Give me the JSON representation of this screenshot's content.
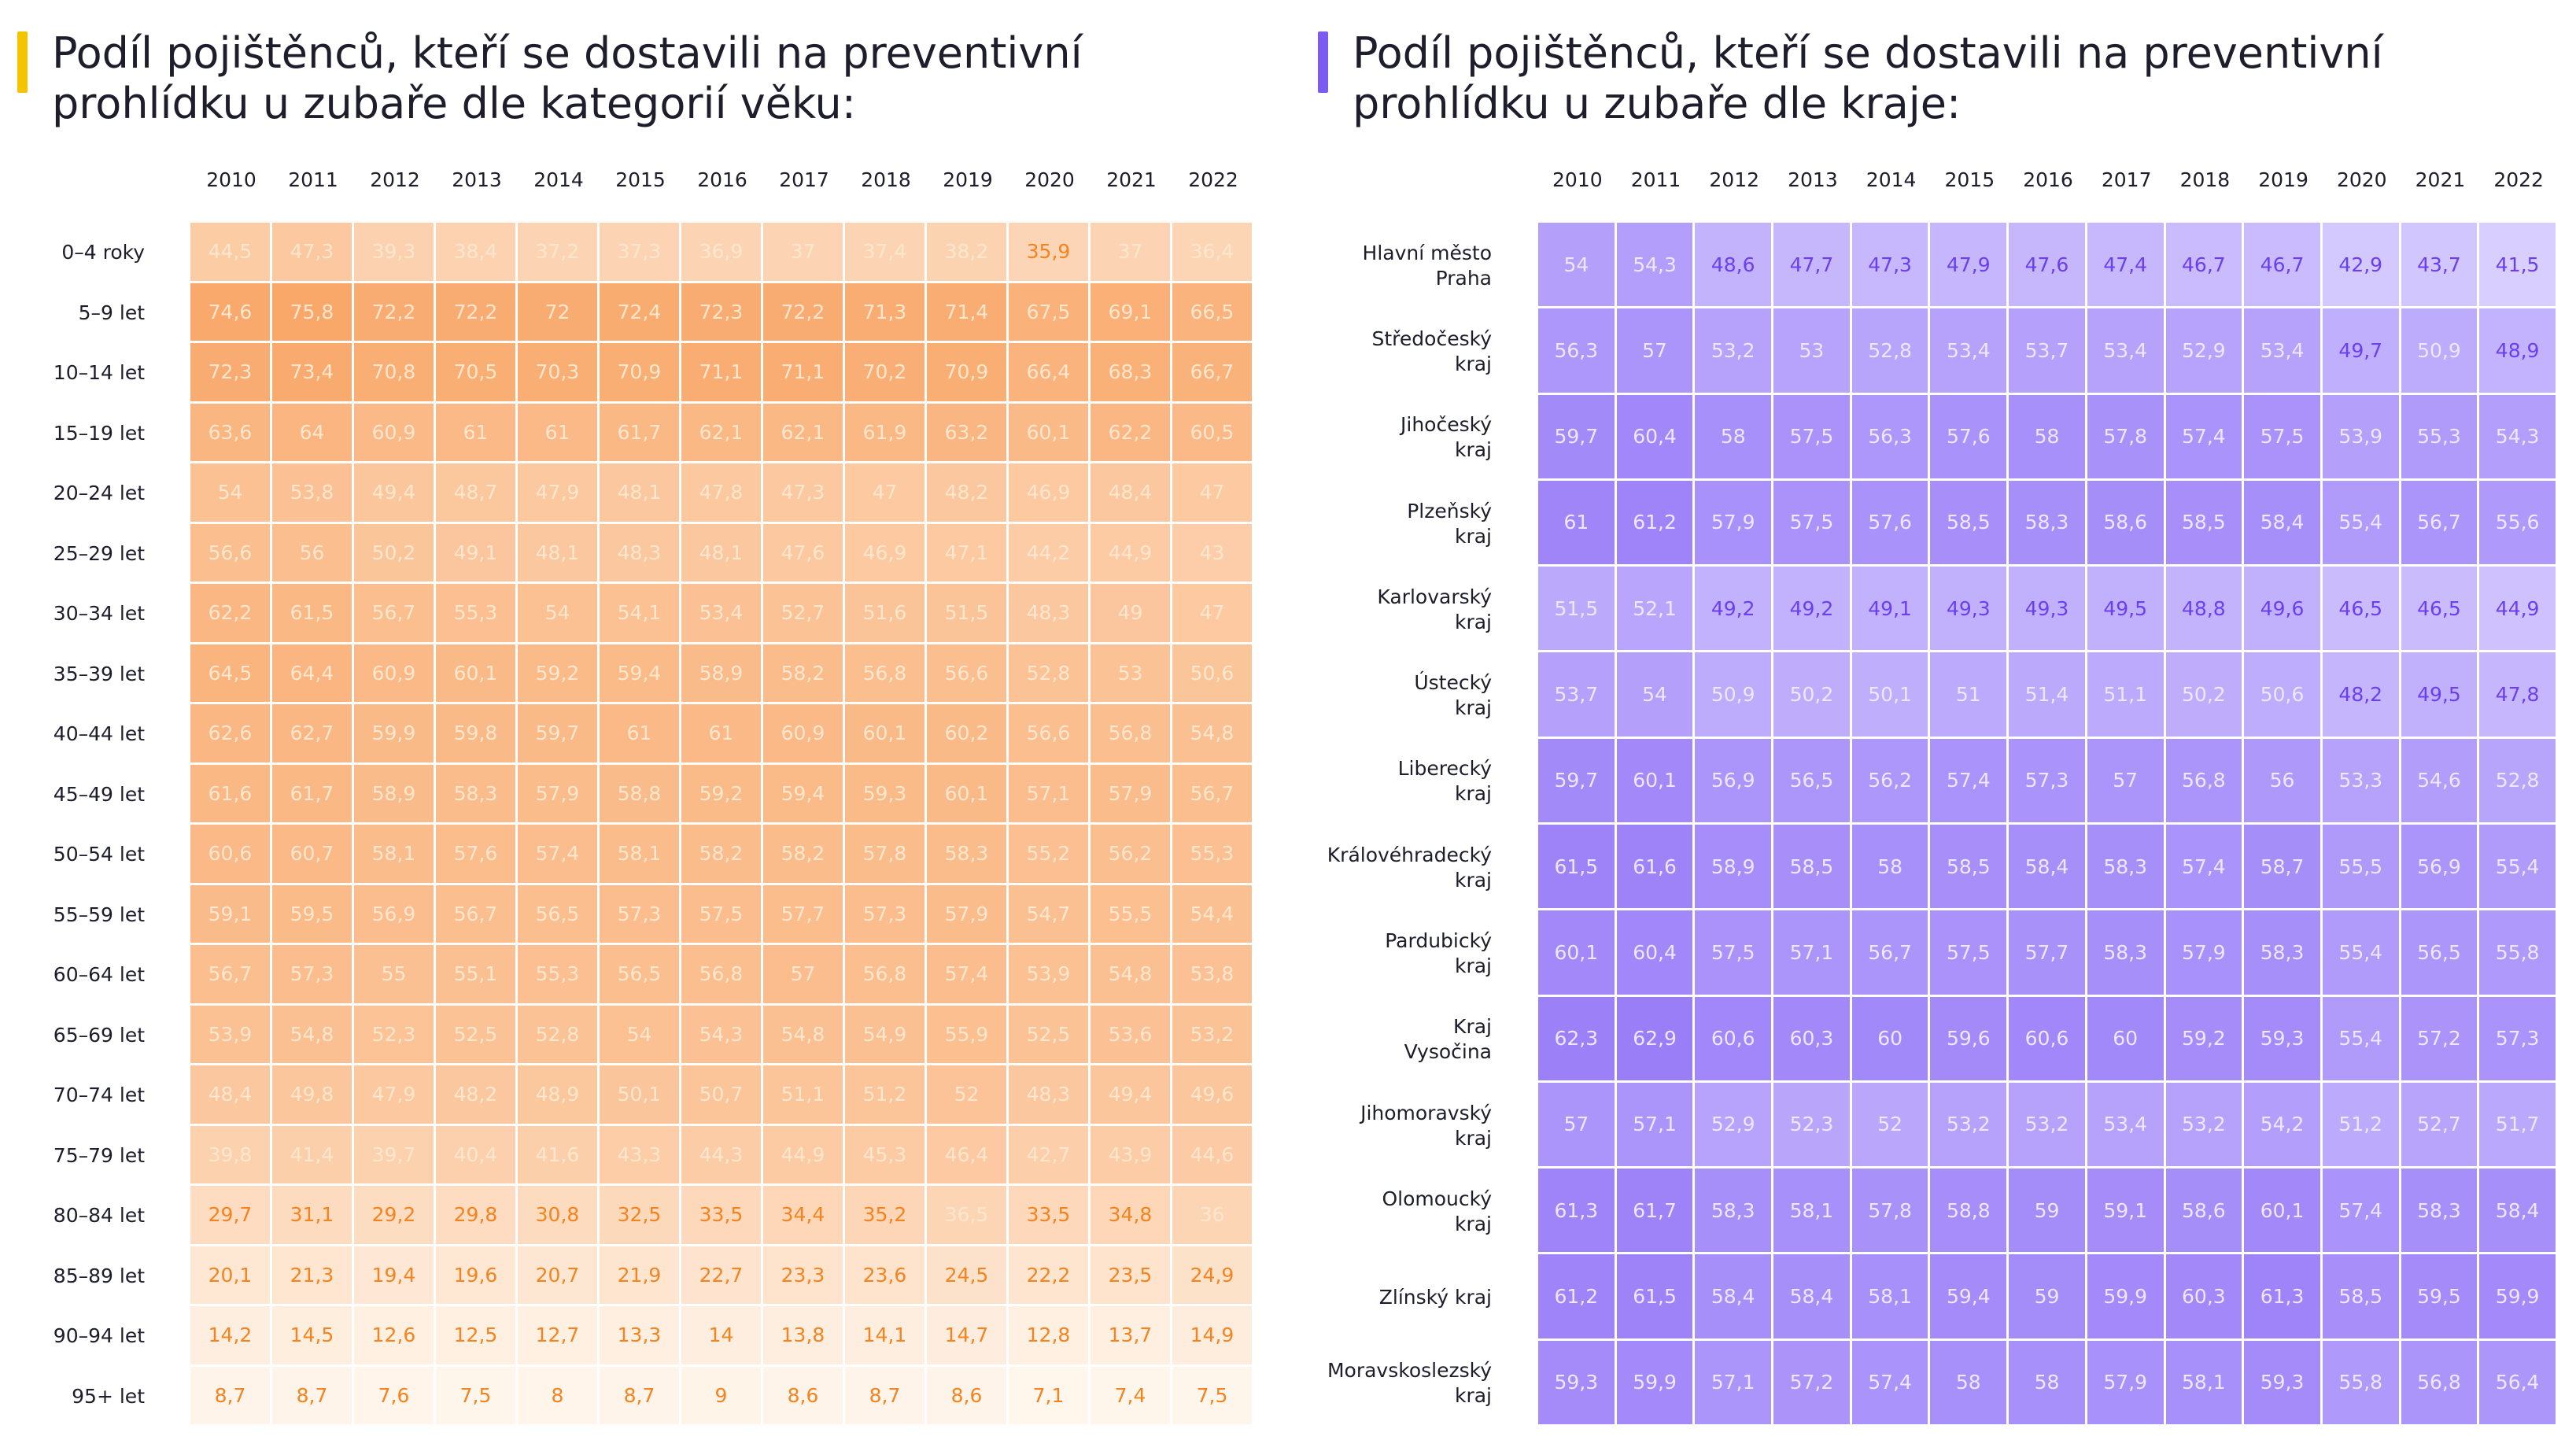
{
  "colors": {
    "left_accent": "#f5c400",
    "right_accent": "#7b5cf0",
    "left_text_high": "#ffe7cf",
    "left_text_low": "#f4841f",
    "right_text_high": "#ede8ff",
    "right_text_low": "#6b3ff0"
  },
  "chart_data": [
    {
      "type": "heatmap",
      "title": "Podíl pojištěnců, kteří se dostavili na preventivní\nprohlídku u zubaře dle kategorií věku:",
      "x": [
        "2010",
        "2011",
        "2012",
        "2013",
        "2014",
        "2015",
        "2016",
        "2017",
        "2018",
        "2019",
        "2020",
        "2021",
        "2022"
      ],
      "y": [
        "0–4 roky",
        "5–9 let",
        "10–14 let",
        "15–19 let",
        "20–24 let",
        "25–29 let",
        "30–34 let",
        "35–39 let",
        "40–44 let",
        "45–49 let",
        "50–54 let",
        "55–59 let",
        "60–64 let",
        "65–69 let",
        "70–74 let",
        "75–79 let",
        "80–84 let",
        "85–89 let",
        "90–94 let",
        "95+ let"
      ],
      "values": [
        [
          44.5,
          47.3,
          39.3,
          38.4,
          37.2,
          37.3,
          36.9,
          37,
          37.4,
          38.2,
          35.9,
          37,
          36.4
        ],
        [
          74.6,
          75.8,
          72.2,
          72.2,
          72,
          72.4,
          72.3,
          72.2,
          71.3,
          71.4,
          67.5,
          69.1,
          66.5
        ],
        [
          72.3,
          73.4,
          70.8,
          70.5,
          70.3,
          70.9,
          71.1,
          71.1,
          70.2,
          70.9,
          66.4,
          68.3,
          66.7
        ],
        [
          63.6,
          64,
          60.9,
          61,
          61,
          61.7,
          62.1,
          62.1,
          61.9,
          63.2,
          60.1,
          62.2,
          60.5
        ],
        [
          54,
          53.8,
          49.4,
          48.7,
          47.9,
          48.1,
          47.8,
          47.3,
          47,
          48.2,
          46.9,
          48.4,
          47
        ],
        [
          56.6,
          56,
          50.2,
          49.1,
          48.1,
          48.3,
          48.1,
          47.6,
          46.9,
          47.1,
          44.2,
          44.9,
          43
        ],
        [
          62.2,
          61.5,
          56.7,
          55.3,
          54,
          54.1,
          53.4,
          52.7,
          51.6,
          51.5,
          48.3,
          49,
          47
        ],
        [
          64.5,
          64.4,
          60.9,
          60.1,
          59.2,
          59.4,
          58.9,
          58.2,
          56.8,
          56.6,
          52.8,
          53,
          50.6
        ],
        [
          62.6,
          62.7,
          59.9,
          59.8,
          59.7,
          61,
          61,
          60.9,
          60.1,
          60.2,
          56.6,
          56.8,
          54.8
        ],
        [
          61.6,
          61.7,
          58.9,
          58.3,
          57.9,
          58.8,
          59.2,
          59.4,
          59.3,
          60.1,
          57.1,
          57.9,
          56.7
        ],
        [
          60.6,
          60.7,
          58.1,
          57.6,
          57.4,
          58.1,
          58.2,
          58.2,
          57.8,
          58.3,
          55.2,
          56.2,
          55.3
        ],
        [
          59.1,
          59.5,
          56.9,
          56.7,
          56.5,
          57.3,
          57.5,
          57.7,
          57.3,
          57.9,
          54.7,
          55.5,
          54.4
        ],
        [
          56.7,
          57.3,
          55,
          55.1,
          55.3,
          56.5,
          56.8,
          57,
          56.8,
          57.4,
          53.9,
          54.8,
          53.8
        ],
        [
          53.9,
          54.8,
          52.3,
          52.5,
          52.8,
          54,
          54.3,
          54.8,
          54.9,
          55.9,
          52.5,
          53.6,
          53.2
        ],
        [
          48.4,
          49.8,
          47.9,
          48.2,
          48.9,
          50.1,
          50.7,
          51.1,
          51.2,
          52,
          48.3,
          49.4,
          49.6
        ],
        [
          39.8,
          41.4,
          39.7,
          40.4,
          41.6,
          43.3,
          44.3,
          44.9,
          45.3,
          46.4,
          42.7,
          43.9,
          44.6
        ],
        [
          29.7,
          31.1,
          29.2,
          29.8,
          30.8,
          32.5,
          33.5,
          34.4,
          35.2,
          36.5,
          33.5,
          34.8,
          36
        ],
        [
          20.1,
          21.3,
          19.4,
          19.6,
          20.7,
          21.9,
          22.7,
          23.3,
          23.6,
          24.5,
          22.2,
          23.5,
          24.9
        ],
        [
          14.2,
          14.5,
          12.6,
          12.5,
          12.7,
          13.3,
          14,
          13.8,
          14.1,
          14.7,
          12.8,
          13.7,
          14.9
        ],
        [
          8.7,
          8.7,
          7.6,
          7.5,
          8,
          8.7,
          9,
          8.6,
          8.7,
          8.6,
          7.1,
          7.4,
          7.5
        ]
      ],
      "color_scale": [
        "#fff6ec",
        "#f9a86a"
      ]
    },
    {
      "type": "heatmap",
      "title": "Podíl pojištěnců, kteří se dostavili na preventivní\nprohlídku u zubaře dle kraje:",
      "x": [
        "2010",
        "2011",
        "2012",
        "2013",
        "2014",
        "2015",
        "2016",
        "2017",
        "2018",
        "2019",
        "2020",
        "2021",
        "2022"
      ],
      "y": [
        "Hlavní město\nPraha",
        "Středočeský\nkraj",
        "Jihočeský\nkraj",
        "Plzeňský\nkraj",
        "Karlovarský\nkraj",
        "Ústecký\nkraj",
        "Liberecký\nkraj",
        "Královéhradecký\nkraj",
        "Pardubický\nkraj",
        "Kraj\nVysočina",
        "Jihomoravský\nkraj",
        "Olomoucký\nkraj",
        "Zlínský kraj",
        "Moravskoslezský\nkraj"
      ],
      "values": [
        [
          54,
          54.3,
          48.6,
          47.7,
          47.3,
          47.9,
          47.6,
          47.4,
          46.7,
          46.7,
          42.9,
          43.7,
          41.5
        ],
        [
          56.3,
          57,
          53.2,
          53,
          52.8,
          53.4,
          53.7,
          53.4,
          52.9,
          53.4,
          49.7,
          50.9,
          48.9
        ],
        [
          59.7,
          60.4,
          58,
          57.5,
          56.3,
          57.6,
          58,
          57.8,
          57.4,
          57.5,
          53.9,
          55.3,
          54.3
        ],
        [
          61,
          61.2,
          57.9,
          57.5,
          57.6,
          58.5,
          58.3,
          58.6,
          58.5,
          58.4,
          55.4,
          56.7,
          55.6
        ],
        [
          51.5,
          52.1,
          49.2,
          49.2,
          49.1,
          49.3,
          49.3,
          49.5,
          48.8,
          49.6,
          46.5,
          46.5,
          44.9
        ],
        [
          53.7,
          54,
          50.9,
          50.2,
          50.1,
          51,
          51.4,
          51.1,
          50.2,
          50.6,
          48.2,
          49.5,
          47.8
        ],
        [
          59.7,
          60.1,
          56.9,
          56.5,
          56.2,
          57.4,
          57.3,
          57,
          56.8,
          56,
          53.3,
          54.6,
          52.8
        ],
        [
          61.5,
          61.6,
          58.9,
          58.5,
          58,
          58.5,
          58.4,
          58.3,
          57.4,
          58.7,
          55.5,
          56.9,
          55.4
        ],
        [
          60.1,
          60.4,
          57.5,
          57.1,
          56.7,
          57.5,
          57.7,
          58.3,
          57.9,
          58.3,
          55.4,
          56.5,
          55.8
        ],
        [
          62.3,
          62.9,
          60.6,
          60.3,
          60,
          59.6,
          60.6,
          60,
          59.2,
          59.3,
          55.4,
          57.2,
          57.3
        ],
        [
          57,
          57.1,
          52.9,
          52.3,
          52,
          53.2,
          53.2,
          53.4,
          53.2,
          54.2,
          51.2,
          52.7,
          51.7
        ],
        [
          61.3,
          61.7,
          58.3,
          58.1,
          57.8,
          58.8,
          59,
          59.1,
          58.6,
          60.1,
          57.4,
          58.3,
          58.4
        ],
        [
          61.2,
          61.5,
          58.4,
          58.4,
          58.1,
          59.4,
          59,
          59.9,
          60.3,
          61.3,
          58.5,
          59.5,
          59.9
        ],
        [
          59.3,
          59.9,
          57.1,
          57.2,
          57.4,
          58,
          58,
          57.9,
          58.1,
          59.3,
          55.8,
          56.8,
          56.4
        ]
      ],
      "color_scale": [
        "#d8ceff",
        "#9a7ef8"
      ]
    }
  ]
}
